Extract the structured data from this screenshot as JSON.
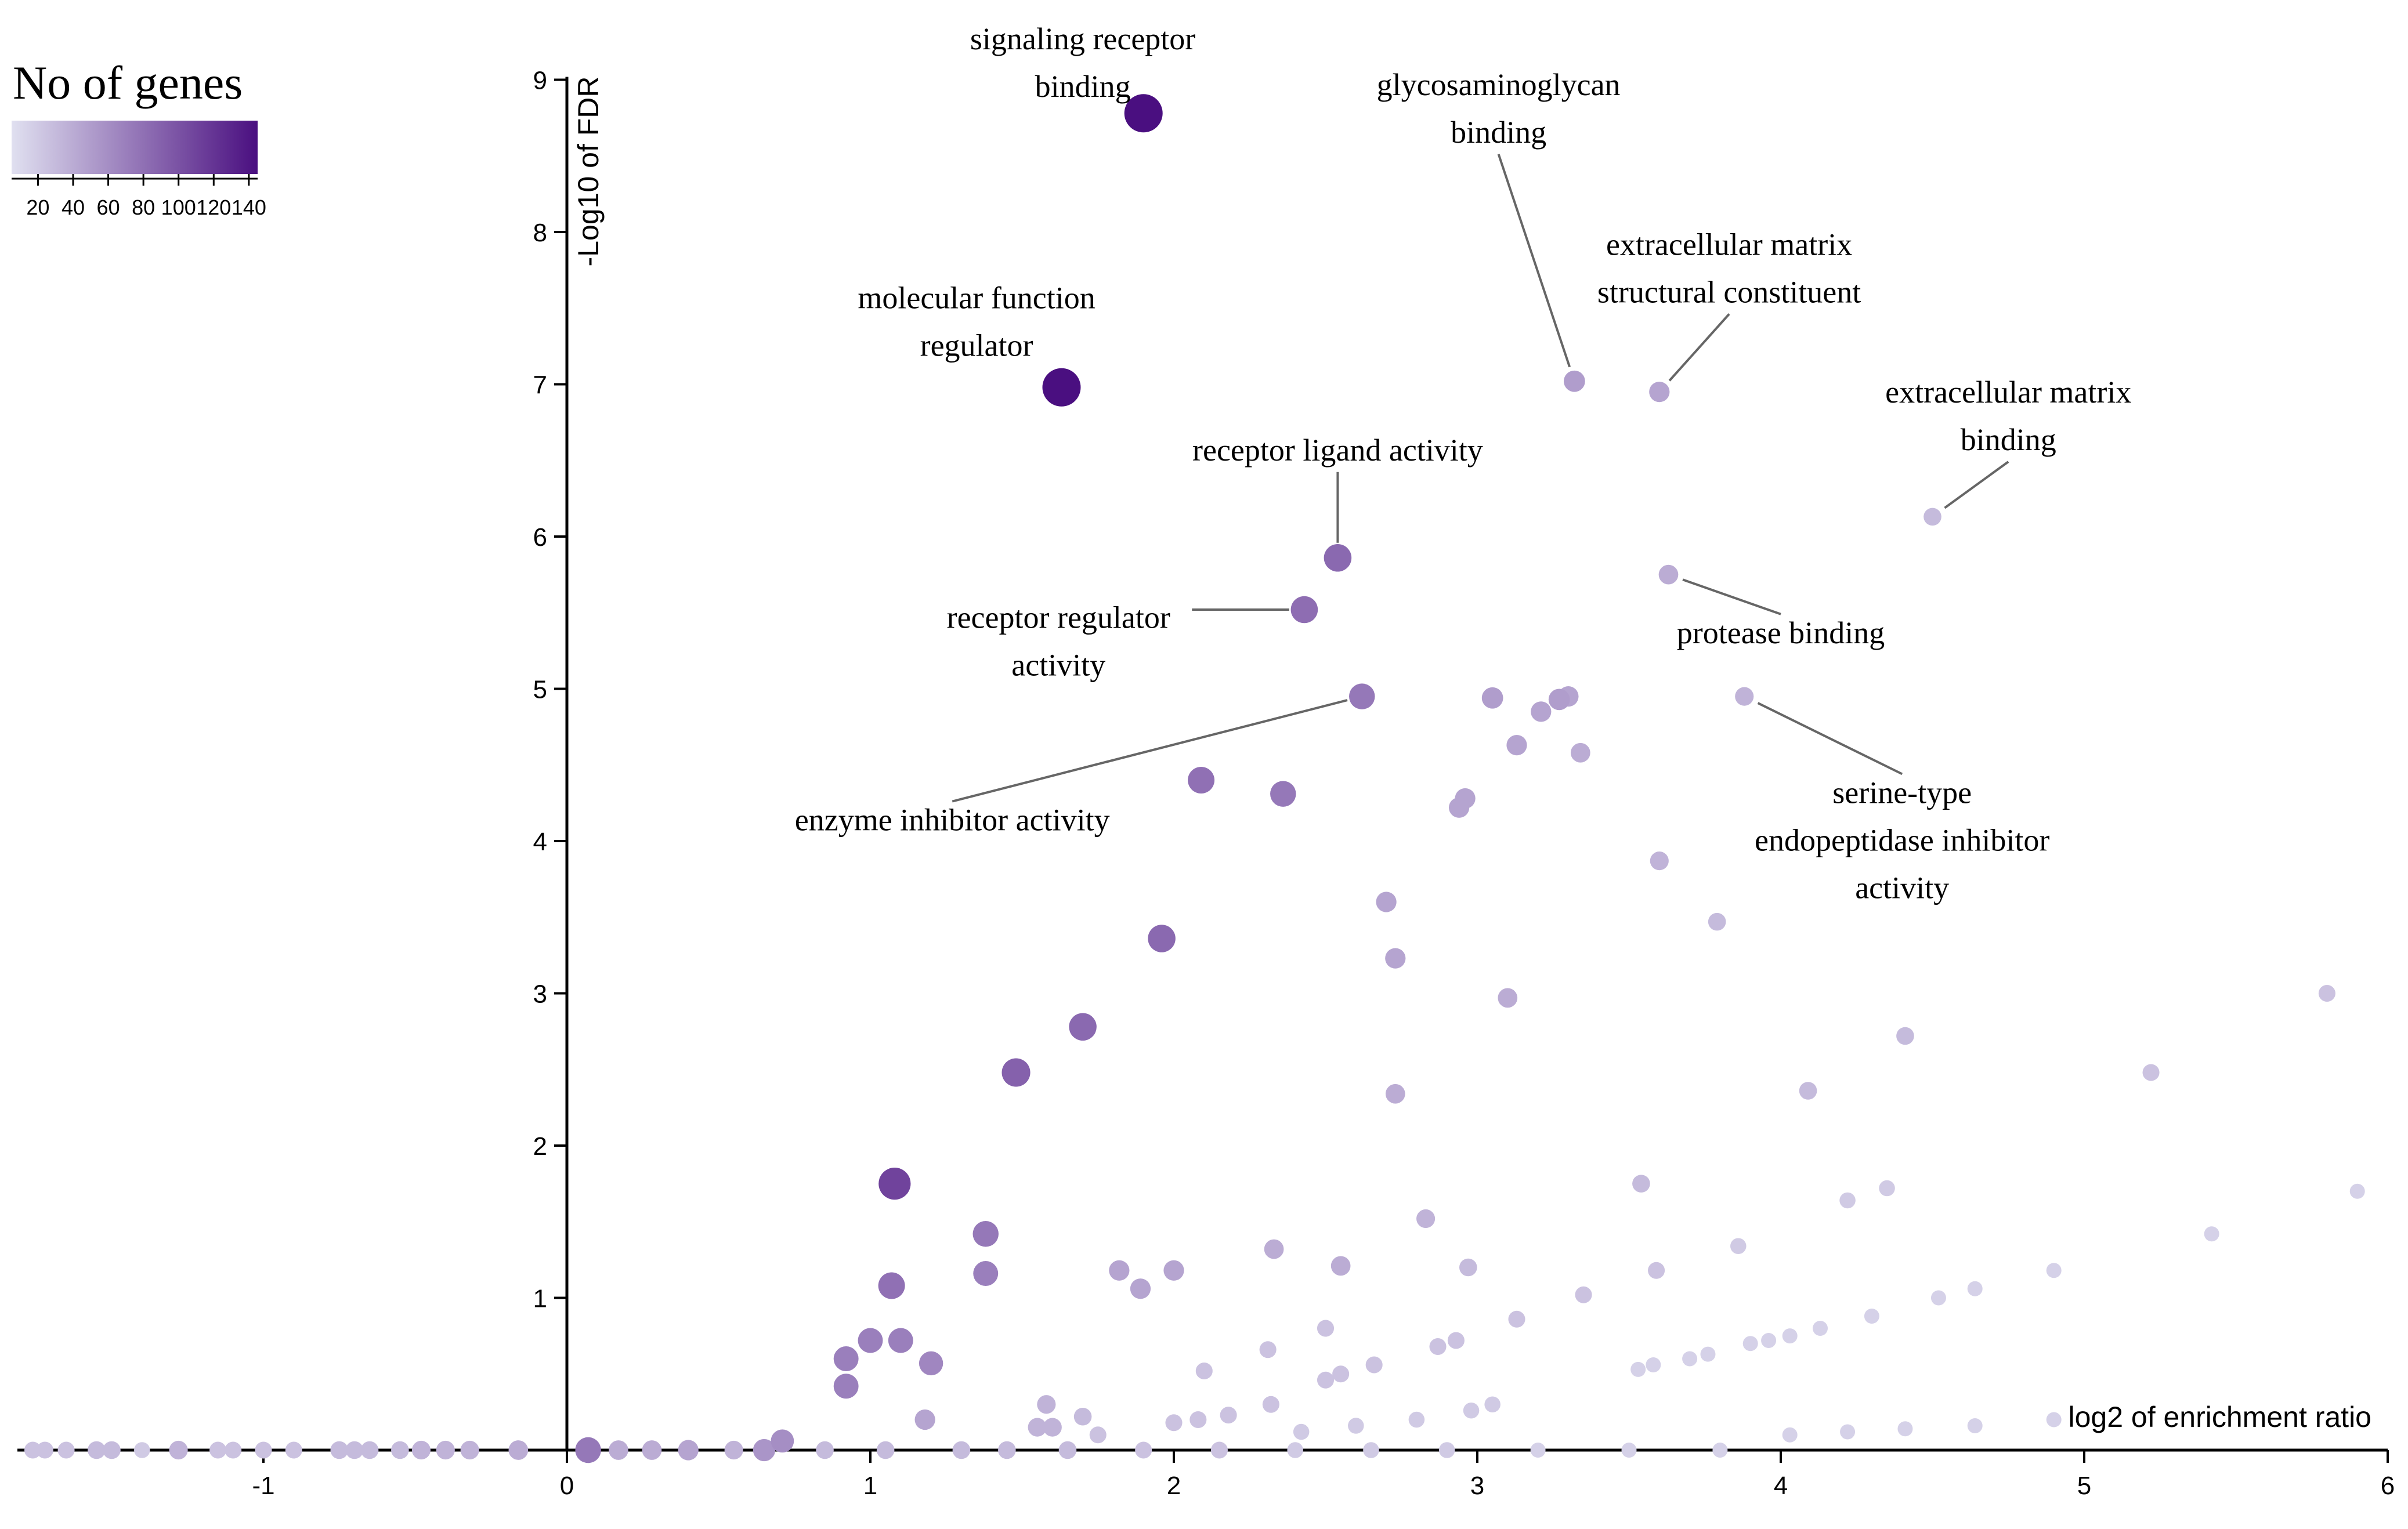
{
  "chart_data": {
    "type": "scatter",
    "xlabel": "log2 of enrichment ratio",
    "ylabel": "-Log10 of FDR",
    "xlim": [
      -1.8,
      6
    ],
    "ylim": [
      0,
      9
    ],
    "x_ticks": [
      -1,
      0,
      1,
      2,
      3,
      4,
      5,
      6
    ],
    "y_ticks": [
      1,
      2,
      3,
      4,
      5,
      6,
      7,
      8,
      9
    ],
    "grid": false,
    "legend": {
      "title": "No of genes",
      "placement": "top-left",
      "ticks": [
        "20",
        "40",
        "60",
        "80",
        "100",
        "120",
        "140"
      ],
      "range": [
        5,
        145
      ],
      "colors": [
        "#e0e0f0",
        "#4a0f80"
      ]
    },
    "points": [
      {
        "x": 1.9,
        "y": 8.78,
        "genes": 145
      },
      {
        "x": 1.63,
        "y": 6.98,
        "genes": 145
      },
      {
        "x": 3.32,
        "y": 7.02,
        "genes": 50
      },
      {
        "x": 3.6,
        "y": 6.95,
        "genes": 45
      },
      {
        "x": 4.5,
        "y": 6.13,
        "genes": 30
      },
      {
        "x": 2.54,
        "y": 5.86,
        "genes": 85
      },
      {
        "x": 2.43,
        "y": 5.52,
        "genes": 82
      },
      {
        "x": 3.63,
        "y": 5.75,
        "genes": 40
      },
      {
        "x": 2.62,
        "y": 4.95,
        "genes": 75
      },
      {
        "x": 3.88,
        "y": 4.95,
        "genes": 35
      },
      {
        "x": 3.05,
        "y": 4.94,
        "genes": 50
      },
      {
        "x": 3.27,
        "y": 4.93,
        "genes": 50
      },
      {
        "x": 3.3,
        "y": 4.95,
        "genes": 45
      },
      {
        "x": 3.21,
        "y": 4.85,
        "genes": 45
      },
      {
        "x": 3.13,
        "y": 4.63,
        "genes": 45
      },
      {
        "x": 3.34,
        "y": 4.58,
        "genes": 40
      },
      {
        "x": 2.09,
        "y": 4.4,
        "genes": 80
      },
      {
        "x": 2.36,
        "y": 4.31,
        "genes": 75
      },
      {
        "x": 2.96,
        "y": 4.28,
        "genes": 45
      },
      {
        "x": 2.94,
        "y": 4.22,
        "genes": 45
      },
      {
        "x": 3.6,
        "y": 3.87,
        "genes": 35
      },
      {
        "x": 3.79,
        "y": 3.47,
        "genes": 30
      },
      {
        "x": 2.7,
        "y": 3.6,
        "genes": 45
      },
      {
        "x": 2.73,
        "y": 3.23,
        "genes": 45
      },
      {
        "x": 3.1,
        "y": 2.97,
        "genes": 40
      },
      {
        "x": 1.96,
        "y": 3.36,
        "genes": 85
      },
      {
        "x": 1.7,
        "y": 2.78,
        "genes": 85
      },
      {
        "x": 1.48,
        "y": 2.48,
        "genes": 90
      },
      {
        "x": 2.73,
        "y": 2.34,
        "genes": 40
      },
      {
        "x": 4.41,
        "y": 2.72,
        "genes": 30
      },
      {
        "x": 5.8,
        "y": 3.0,
        "genes": 25
      },
      {
        "x": 5.22,
        "y": 2.48,
        "genes": 25
      },
      {
        "x": 4.09,
        "y": 2.36,
        "genes": 30
      },
      {
        "x": 1.08,
        "y": 1.75,
        "genes": 110
      },
      {
        "x": 1.38,
        "y": 1.42,
        "genes": 75
      },
      {
        "x": 1.38,
        "y": 1.16,
        "genes": 70
      },
      {
        "x": 1.07,
        "y": 1.08,
        "genes": 80
      },
      {
        "x": 1.82,
        "y": 1.18,
        "genes": 45
      },
      {
        "x": 2.0,
        "y": 1.18,
        "genes": 45
      },
      {
        "x": 1.89,
        "y": 1.06,
        "genes": 45
      },
      {
        "x": 2.33,
        "y": 1.32,
        "genes": 40
      },
      {
        "x": 2.55,
        "y": 1.21,
        "genes": 40
      },
      {
        "x": 2.83,
        "y": 1.52,
        "genes": 35
      },
      {
        "x": 2.97,
        "y": 1.2,
        "genes": 30
      },
      {
        "x": 3.54,
        "y": 1.75,
        "genes": 30
      },
      {
        "x": 3.59,
        "y": 1.18,
        "genes": 25
      },
      {
        "x": 3.35,
        "y": 1.02,
        "genes": 25
      },
      {
        "x": 3.13,
        "y": 0.86,
        "genes": 25
      },
      {
        "x": 3.86,
        "y": 1.34,
        "genes": 20
      },
      {
        "x": 4.22,
        "y": 1.64,
        "genes": 20
      },
      {
        "x": 4.35,
        "y": 1.72,
        "genes": 20
      },
      {
        "x": 4.9,
        "y": 1.18,
        "genes": 15
      },
      {
        "x": 5.42,
        "y": 1.42,
        "genes": 15
      },
      {
        "x": 5.9,
        "y": 1.7,
        "genes": 15
      },
      {
        "x": 4.52,
        "y": 1.0,
        "genes": 15
      },
      {
        "x": 4.64,
        "y": 1.06,
        "genes": 15
      },
      {
        "x": 4.3,
        "y": 0.88,
        "genes": 15
      },
      {
        "x": 4.13,
        "y": 0.8,
        "genes": 15
      },
      {
        "x": 4.03,
        "y": 0.75,
        "genes": 15
      },
      {
        "x": 3.96,
        "y": 0.72,
        "genes": 15
      },
      {
        "x": 3.9,
        "y": 0.7,
        "genes": 15
      },
      {
        "x": 3.76,
        "y": 0.63,
        "genes": 15
      },
      {
        "x": 3.7,
        "y": 0.6,
        "genes": 15
      },
      {
        "x": 3.58,
        "y": 0.56,
        "genes": 15
      },
      {
        "x": 3.53,
        "y": 0.53,
        "genes": 15
      },
      {
        "x": 2.5,
        "y": 0.8,
        "genes": 25
      },
      {
        "x": 2.31,
        "y": 0.66,
        "genes": 25
      },
      {
        "x": 2.1,
        "y": 0.52,
        "genes": 25
      },
      {
        "x": 2.66,
        "y": 0.56,
        "genes": 25
      },
      {
        "x": 2.55,
        "y": 0.5,
        "genes": 25
      },
      {
        "x": 2.5,
        "y": 0.46,
        "genes": 25
      },
      {
        "x": 2.87,
        "y": 0.68,
        "genes": 25
      },
      {
        "x": 2.93,
        "y": 0.72,
        "genes": 25
      },
      {
        "x": 0.92,
        "y": 0.6,
        "genes": 70
      },
      {
        "x": 1.0,
        "y": 0.72,
        "genes": 70
      },
      {
        "x": 1.1,
        "y": 0.72,
        "genes": 70
      },
      {
        "x": 1.2,
        "y": 0.57,
        "genes": 65
      },
      {
        "x": 0.92,
        "y": 0.42,
        "genes": 70
      },
      {
        "x": 1.18,
        "y": 0.2,
        "genes": 45
      },
      {
        "x": 1.58,
        "y": 0.3,
        "genes": 35
      },
      {
        "x": 1.55,
        "y": 0.15,
        "genes": 35
      },
      {
        "x": 1.6,
        "y": 0.15,
        "genes": 35
      },
      {
        "x": 1.7,
        "y": 0.22,
        "genes": 30
      },
      {
        "x": 1.75,
        "y": 0.1,
        "genes": 25
      },
      {
        "x": 2.0,
        "y": 0.18,
        "genes": 25
      },
      {
        "x": 2.08,
        "y": 0.2,
        "genes": 25
      },
      {
        "x": 2.18,
        "y": 0.23,
        "genes": 25
      },
      {
        "x": 2.32,
        "y": 0.3,
        "genes": 25
      },
      {
        "x": 2.42,
        "y": 0.12,
        "genes": 20
      },
      {
        "x": 2.6,
        "y": 0.16,
        "genes": 20
      },
      {
        "x": 2.8,
        "y": 0.2,
        "genes": 20
      },
      {
        "x": 2.98,
        "y": 0.26,
        "genes": 20
      },
      {
        "x": 3.05,
        "y": 0.3,
        "genes": 20
      },
      {
        "x": 4.9,
        "y": 0.2,
        "genes": 15
      },
      {
        "x": 4.64,
        "y": 0.16,
        "genes": 15
      },
      {
        "x": 4.41,
        "y": 0.14,
        "genes": 15
      },
      {
        "x": 4.22,
        "y": 0.12,
        "genes": 15
      },
      {
        "x": 4.03,
        "y": 0.1,
        "genes": 15
      },
      {
        "x": 0.71,
        "y": 0.06,
        "genes": 60
      },
      {
        "x": 0.65,
        "y": 0.0,
        "genes": 55
      },
      {
        "x": 0.07,
        "y": 0.0,
        "genes": 75
      },
      {
        "x": -0.16,
        "y": 0.0,
        "genes": 40
      },
      {
        "x": 0.17,
        "y": 0.0,
        "genes": 40
      },
      {
        "x": 0.28,
        "y": 0.0,
        "genes": 40
      },
      {
        "x": 0.4,
        "y": 0.0,
        "genes": 45
      },
      {
        "x": 0.55,
        "y": 0.0,
        "genes": 35
      },
      {
        "x": 0.85,
        "y": 0.0,
        "genes": 30
      },
      {
        "x": 1.05,
        "y": 0.0,
        "genes": 30
      },
      {
        "x": 1.3,
        "y": 0.0,
        "genes": 30
      },
      {
        "x": 1.45,
        "y": 0.0,
        "genes": 30
      },
      {
        "x": 1.65,
        "y": 0.0,
        "genes": 30
      },
      {
        "x": 1.9,
        "y": 0.0,
        "genes": 25
      },
      {
        "x": 2.15,
        "y": 0.0,
        "genes": 25
      },
      {
        "x": 2.4,
        "y": 0.0,
        "genes": 20
      },
      {
        "x": 2.65,
        "y": 0.0,
        "genes": 20
      },
      {
        "x": 2.9,
        "y": 0.0,
        "genes": 20
      },
      {
        "x": 3.2,
        "y": 0.0,
        "genes": 15
      },
      {
        "x": 3.5,
        "y": 0.0,
        "genes": 15
      },
      {
        "x": 3.8,
        "y": 0.0,
        "genes": 15
      },
      {
        "x": -0.32,
        "y": 0.0,
        "genes": 35
      },
      {
        "x": -0.4,
        "y": 0.0,
        "genes": 35
      },
      {
        "x": -0.48,
        "y": 0.0,
        "genes": 35
      },
      {
        "x": -0.55,
        "y": 0.0,
        "genes": 30
      },
      {
        "x": -0.65,
        "y": 0.0,
        "genes": 30
      },
      {
        "x": -0.7,
        "y": 0.0,
        "genes": 30
      },
      {
        "x": -0.75,
        "y": 0.0,
        "genes": 30
      },
      {
        "x": -0.9,
        "y": 0.0,
        "genes": 25
      },
      {
        "x": -1.0,
        "y": 0.0,
        "genes": 25
      },
      {
        "x": -1.1,
        "y": 0.0,
        "genes": 25
      },
      {
        "x": -1.15,
        "y": 0.0,
        "genes": 25
      },
      {
        "x": -1.28,
        "y": 0.0,
        "genes": 35
      },
      {
        "x": -1.4,
        "y": 0.0,
        "genes": 20
      },
      {
        "x": -1.5,
        "y": 0.0,
        "genes": 30
      },
      {
        "x": -1.55,
        "y": 0.0,
        "genes": 30
      },
      {
        "x": -1.65,
        "y": 0.0,
        "genes": 25
      },
      {
        "x": -1.72,
        "y": 0.0,
        "genes": 25
      },
      {
        "x": -1.76,
        "y": 0.0,
        "genes": 25
      }
    ],
    "annotations": [
      {
        "lines": [
          "signaling receptor",
          "binding"
        ],
        "point": [
          1.9,
          8.78
        ],
        "text_at": [
          1.7,
          9.2
        ],
        "anchor": "middle",
        "leader": false
      },
      {
        "lines": [
          "glycosaminoglycan",
          "binding"
        ],
        "point": [
          3.32,
          7.02
        ],
        "text_at": [
          3.07,
          8.9
        ],
        "anchor": "middle",
        "leader": true
      },
      {
        "lines": [
          "extracellular matrix",
          "structural constituent"
        ],
        "point": [
          3.6,
          6.95
        ],
        "text_at": [
          3.83,
          7.85
        ],
        "anchor": "middle",
        "leader": true
      },
      {
        "lines": [
          "molecular function",
          "regulator"
        ],
        "point": [
          1.63,
          6.98
        ],
        "text_at": [
          1.35,
          7.5
        ],
        "anchor": "middle",
        "leader": false
      },
      {
        "lines": [
          "extracellular matrix",
          "binding"
        ],
        "point": [
          4.5,
          6.13
        ],
        "text_at": [
          4.75,
          6.88
        ],
        "anchor": "middle",
        "leader": true
      },
      {
        "lines": [
          "receptor ligand activity"
        ],
        "point": [
          2.54,
          5.86
        ],
        "text_at": [
          2.54,
          6.5
        ],
        "anchor": "middle",
        "leader": true
      },
      {
        "lines": [
          "receptor regulator",
          "activity"
        ],
        "point": [
          2.43,
          5.52
        ],
        "text_at": [
          1.62,
          5.4
        ],
        "anchor": "middle",
        "leader": true
      },
      {
        "lines": [
          "protease binding"
        ],
        "point": [
          3.63,
          5.75
        ],
        "text_at": [
          4.0,
          5.3
        ],
        "anchor": "middle",
        "leader": true
      },
      {
        "lines": [
          "enzyme inhibitor activity"
        ],
        "point": [
          2.62,
          4.95
        ],
        "text_at": [
          1.27,
          4.07
        ],
        "anchor": "middle",
        "leader": true
      },
      {
        "lines": [
          "serine-type",
          "endopeptidase inhibitor",
          "activity"
        ],
        "point": [
          3.88,
          4.95
        ],
        "text_at": [
          4.4,
          4.25
        ],
        "anchor": "middle",
        "leader": true
      }
    ]
  }
}
